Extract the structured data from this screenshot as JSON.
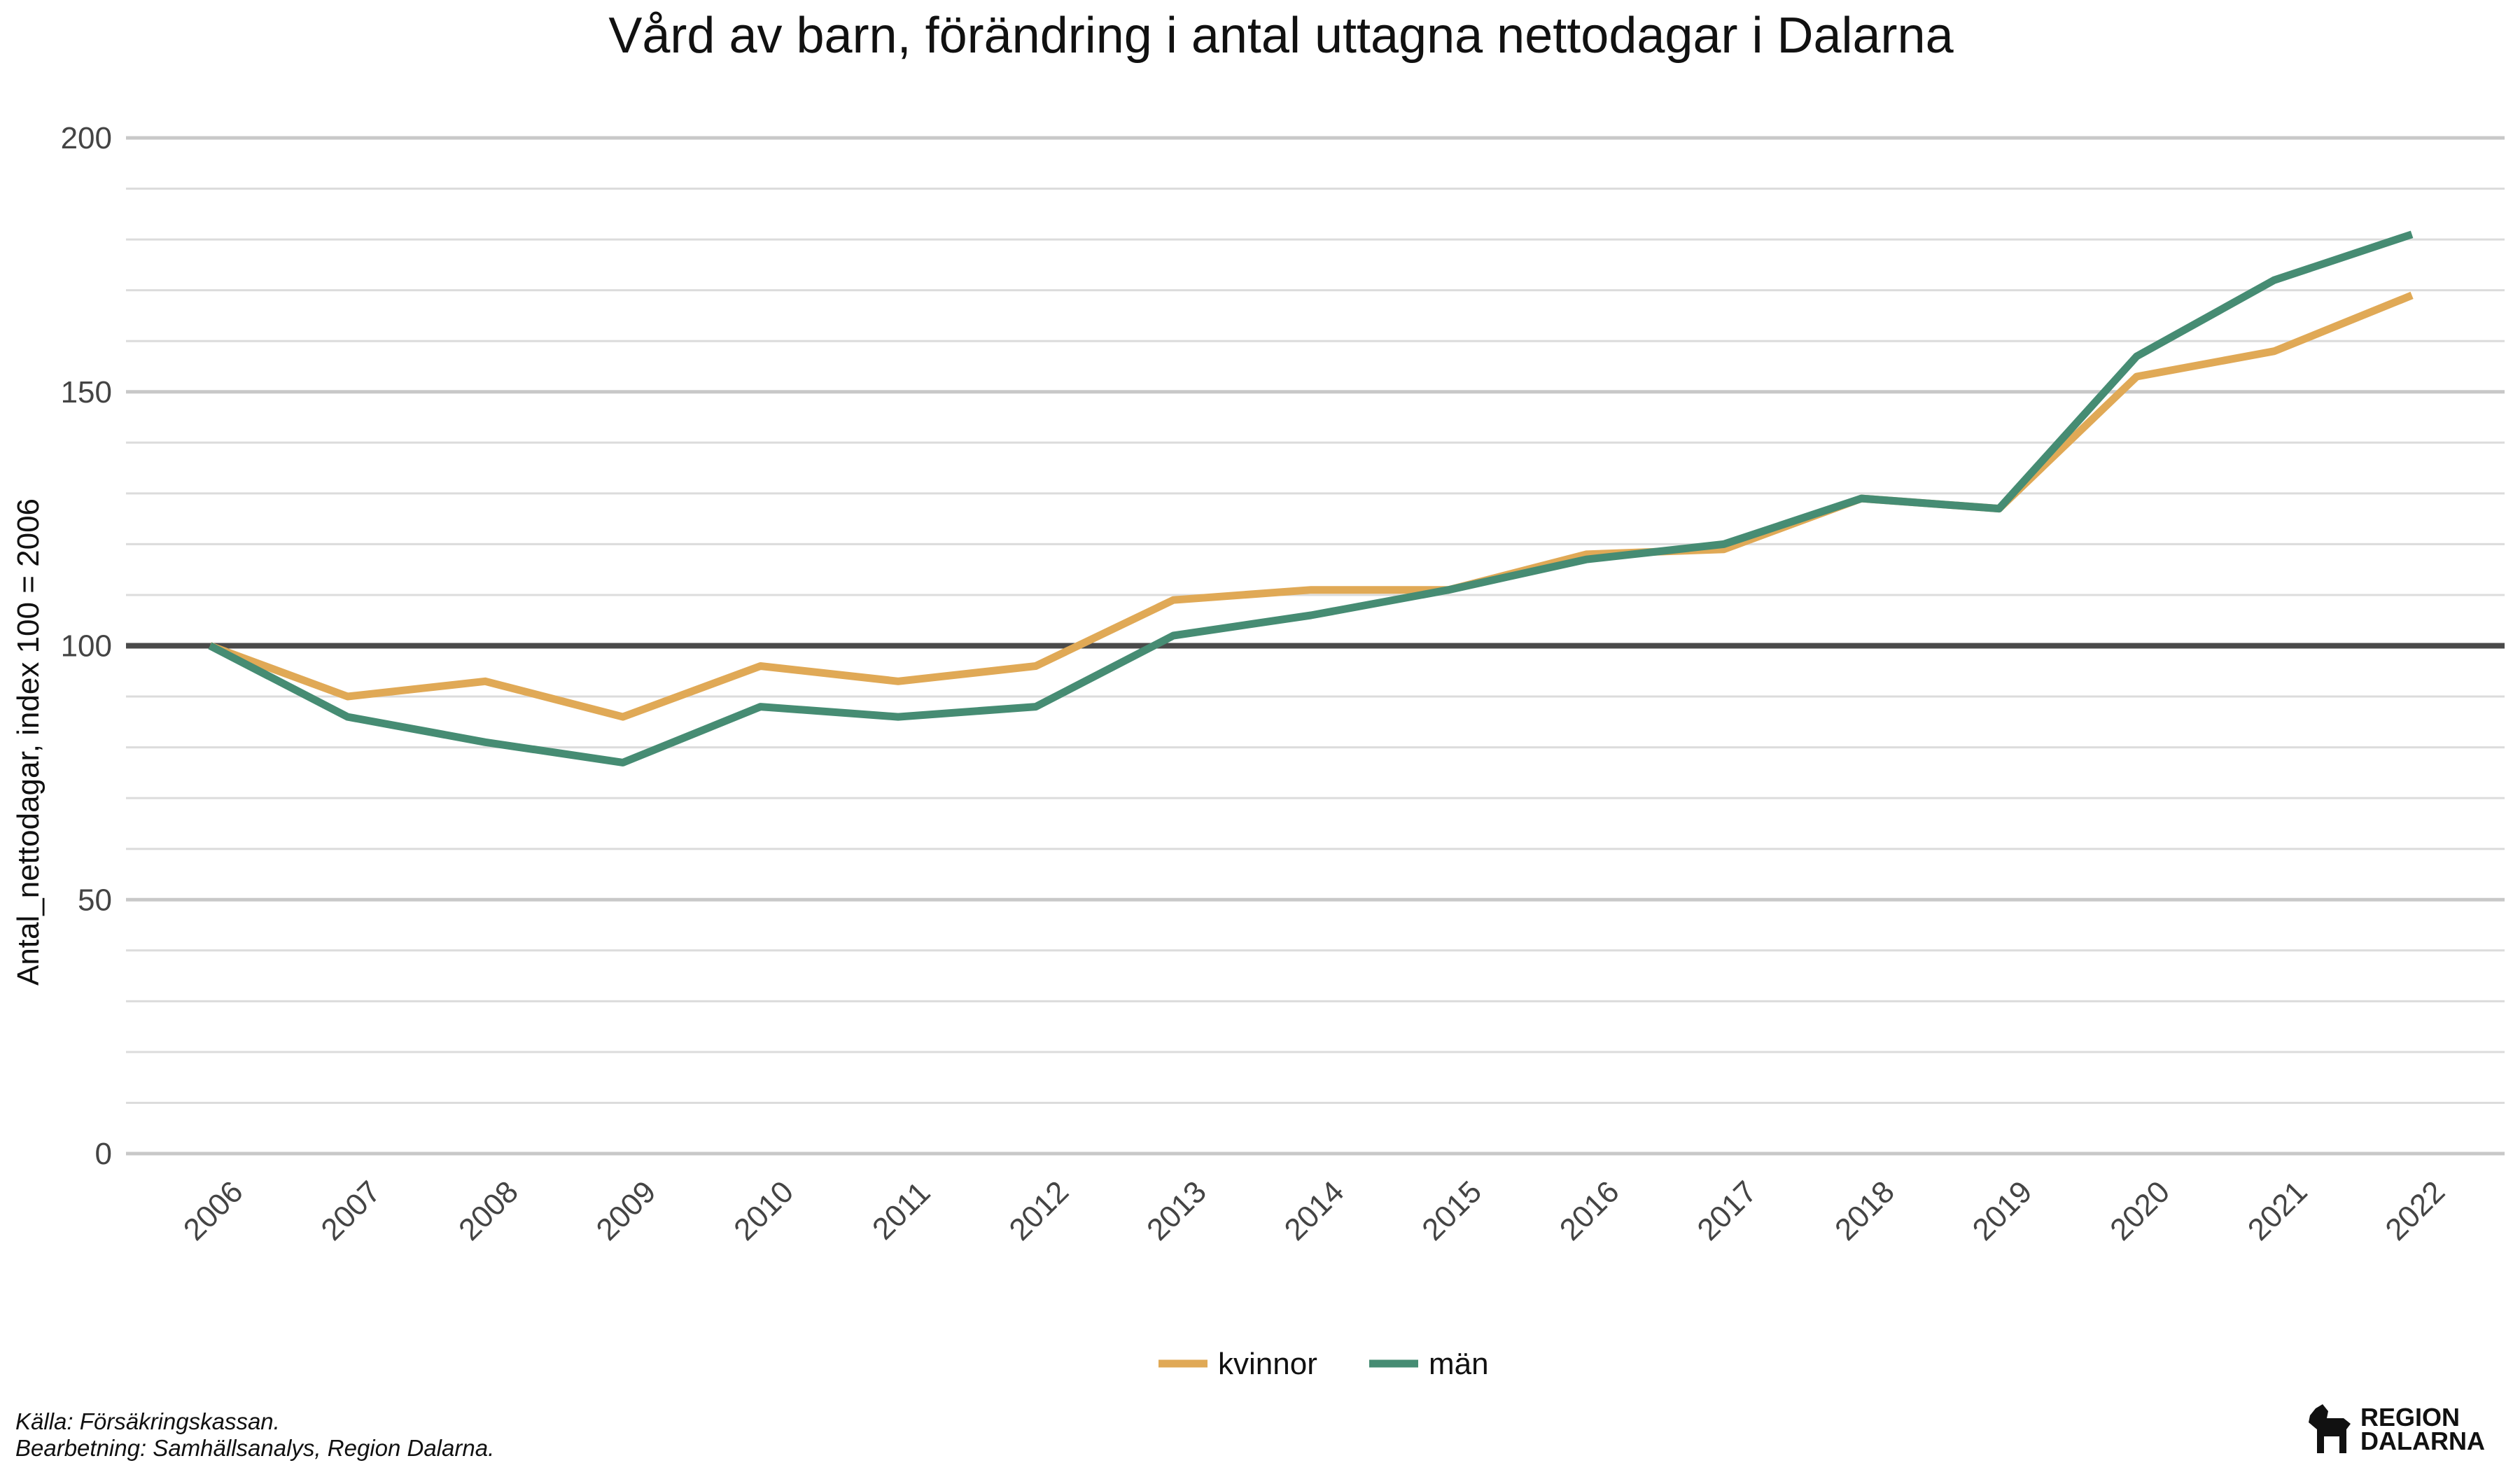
{
  "chart_data": {
    "type": "line",
    "title": "Vård av barn, förändring i antal uttagna nettodagar i Dalarna",
    "xlabel": "",
    "ylabel": "Antal_nettodagar, index 100 = 2006",
    "ylim": [
      0,
      200
    ],
    "yticks": [
      "0",
      "50",
      "100",
      "150",
      "200"
    ],
    "categories": [
      "2006",
      "2007",
      "2008",
      "2009",
      "2010",
      "2011",
      "2012",
      "2013",
      "2014",
      "2015",
      "2016",
      "2017",
      "2018",
      "2019",
      "2020",
      "2021",
      "2022"
    ],
    "reference_line": 100,
    "grid": true,
    "legend_position": "bottom",
    "series": [
      {
        "name": "kvinnor",
        "color": "#E0A956",
        "values": [
          100,
          90,
          93,
          86,
          96,
          93,
          96,
          109,
          111,
          111,
          118,
          119,
          129,
          127,
          153,
          158,
          169
        ]
      },
      {
        "name": "män",
        "color": "#468C73",
        "values": [
          100,
          86,
          81,
          77,
          88,
          86,
          88,
          102,
          106,
          111,
          117,
          120,
          129,
          127,
          157,
          172,
          181
        ]
      }
    ]
  },
  "footer": {
    "source": "Källa: Försäkringskassan.",
    "processing": "Bearbetning: Samhällsanalys, Region Dalarna."
  },
  "logo": {
    "line1": "REGION",
    "line2": "DALARNA",
    "icon": "dala-horse-icon"
  }
}
